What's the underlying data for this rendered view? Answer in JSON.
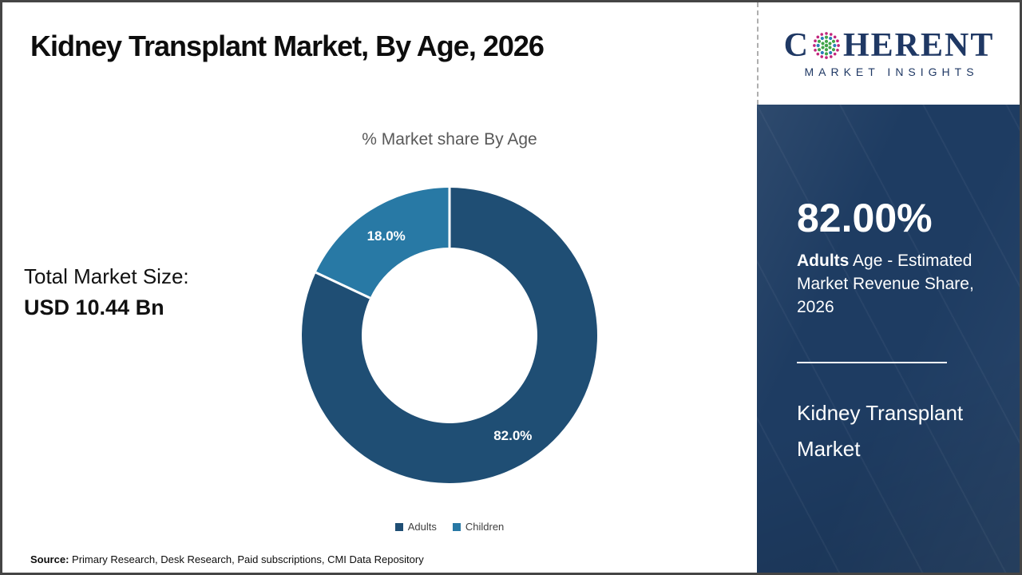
{
  "header": {
    "title": "Kidney Transplant Market, By Age, 2026",
    "logo": {
      "brand_first_letter": "C",
      "brand_rest": "HERENT",
      "tagline": "MARKET INSIGHTS"
    }
  },
  "chart_data": {
    "type": "pie",
    "subtype": "donut",
    "title": "% Market share By Age",
    "series": [
      {
        "name": "Adults",
        "value": 82.0,
        "label": "82.0%",
        "color": "#1f4e74"
      },
      {
        "name": "Children",
        "value": 18.0,
        "label": "18.0%",
        "color": "#2879a5"
      }
    ],
    "start_angle_deg": 0,
    "direction": "clockwise",
    "legend_position": "bottom",
    "data_label_color": "#ffffff"
  },
  "left_panel": {
    "market_size_label": "Total Market Size:",
    "market_size_value": "USD 10.44 Bn"
  },
  "sidebar": {
    "stat_value": "82.00%",
    "stat_label_bold": "Adults",
    "stat_label_rest": " Age - Estimated Market Revenue Share, 2026",
    "report_title": "Kidney Transplant Market"
  },
  "footer": {
    "source_label": "Source:",
    "source_text": " Primary Research, Desk Research, Paid subscriptions, CMI Data Repository"
  },
  "colors": {
    "adults_slice": "#1f4e74",
    "children_slice": "#2879a5",
    "sidebar_background": "#1e3c62",
    "logo_navy": "#1f3864",
    "logo_dot_green": "#41a548",
    "logo_dot_teal": "#2a7fb8",
    "logo_dot_magenta": "#c2267d",
    "chart_title_gray": "#595959"
  }
}
